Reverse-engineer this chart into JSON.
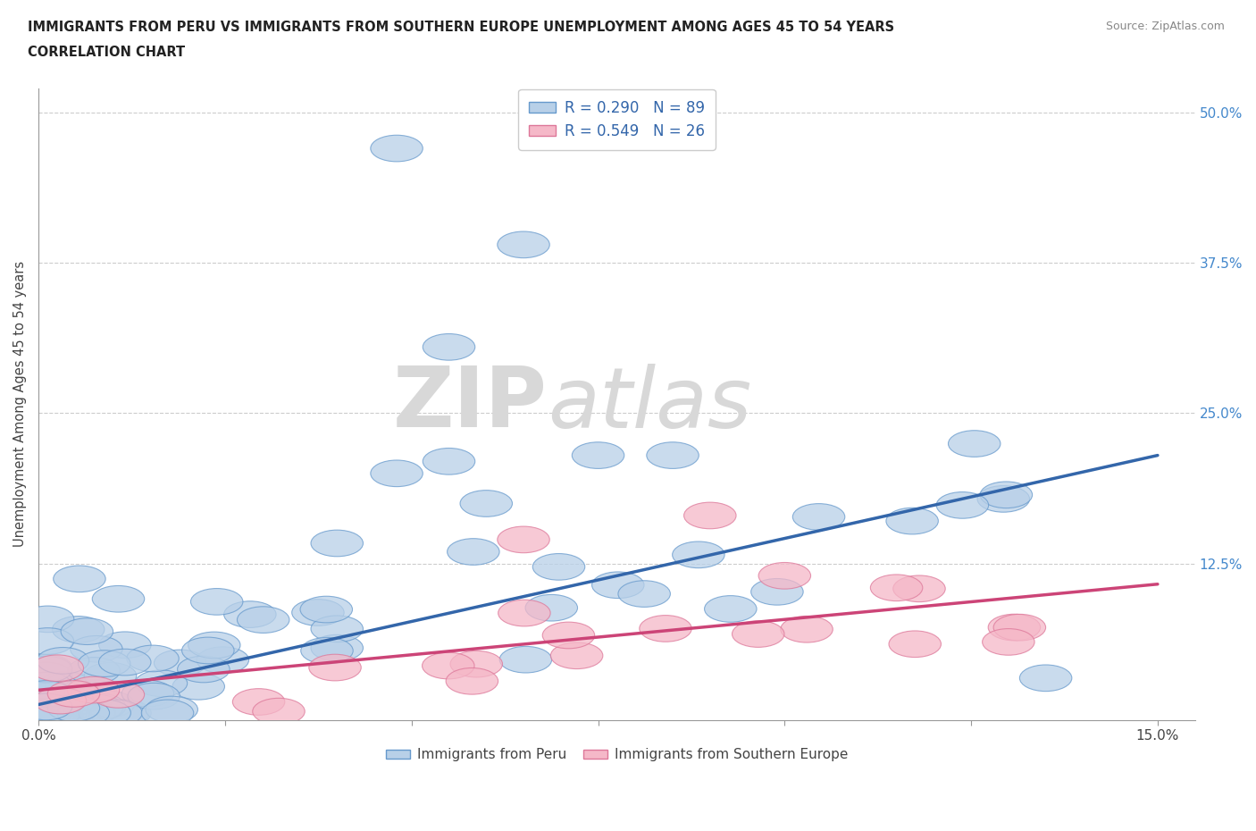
{
  "title_line1": "IMMIGRANTS FROM PERU VS IMMIGRANTS FROM SOUTHERN EUROPE UNEMPLOYMENT AMONG AGES 45 TO 54 YEARS",
  "title_line2": "CORRELATION CHART",
  "source": "Source: ZipAtlas.com",
  "ylabel": "Unemployment Among Ages 45 to 54 years",
  "xlim": [
    0.0,
    0.155
  ],
  "ylim": [
    -0.005,
    0.52
  ],
  "ytick_positions": [
    0.0,
    0.125,
    0.25,
    0.375,
    0.5
  ],
  "ytick_labels": [
    "",
    "12.5%",
    "25.0%",
    "37.5%",
    "50.0%"
  ],
  "blue_R": 0.29,
  "blue_N": 89,
  "pink_R": 0.549,
  "pink_N": 26,
  "blue_color": "#b8d0e8",
  "pink_color": "#f5b8c8",
  "blue_edge_color": "#6699cc",
  "pink_edge_color": "#dd7799",
  "blue_line_color": "#3366aa",
  "pink_line_color": "#cc4477",
  "watermark_zip": "ZIP",
  "watermark_atlas": "atlas",
  "legend_label_blue": "Immigrants from Peru",
  "legend_label_pink": "Immigrants from Southern Europe",
  "blue_line_x0": 0.0,
  "blue_line_y0": 0.008,
  "blue_line_x1": 0.15,
  "blue_line_y1": 0.215,
  "pink_line_x0": 0.0,
  "pink_line_y0": 0.02,
  "pink_line_x1": 0.15,
  "pink_line_y1": 0.108
}
